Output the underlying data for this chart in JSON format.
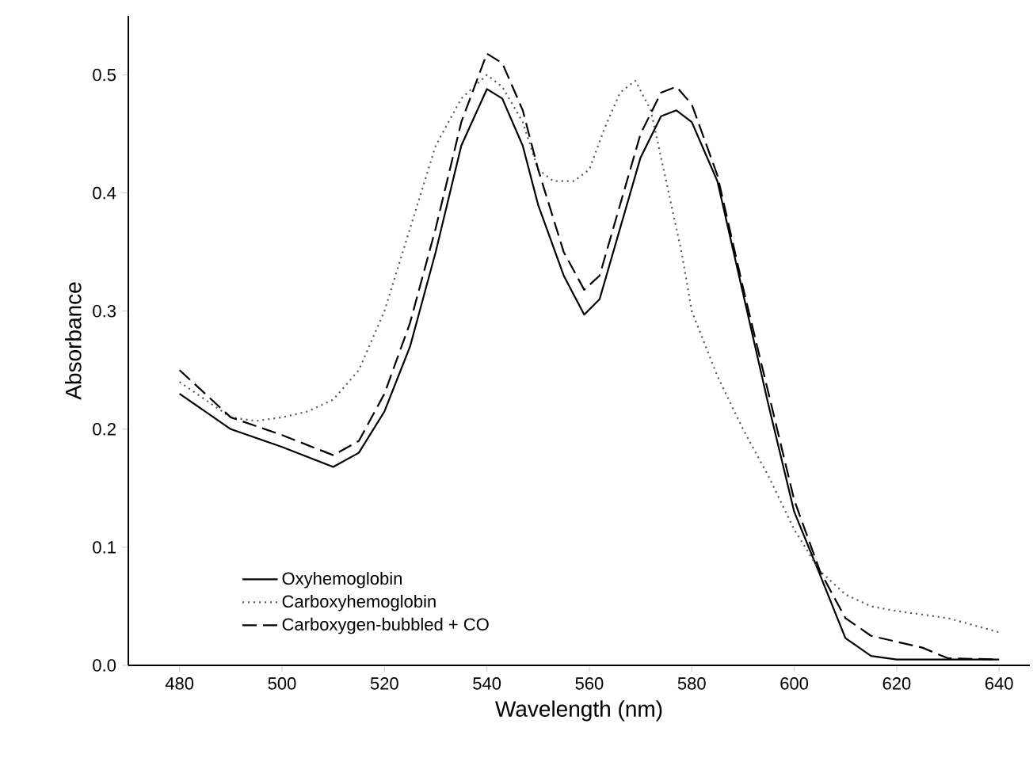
{
  "chart_data": {
    "type": "line",
    "xlabel": "Wavelength (nm)",
    "ylabel": "Absorbance",
    "xlim": [
      470,
      646
    ],
    "xticks": [
      480,
      500,
      520,
      540,
      560,
      580,
      600,
      620,
      640
    ],
    "ylim": [
      0,
      0.55
    ],
    "yticks": [
      {
        "value": 0,
        "label": "0.0"
      },
      0.1,
      0.2,
      0.3,
      0.4,
      0.5
    ],
    "legend": "bottom left",
    "grid": false,
    "marker": "none",
    "series": [
      {
        "name": "Oxyhemoglobin",
        "color": "#000000",
        "line_style": "solid",
        "x": [
          480,
          490,
          500,
          510,
          515,
          520,
          525,
          530,
          535,
          540,
          543,
          547,
          550,
          555,
          559,
          562,
          566,
          570,
          574,
          577,
          580,
          585,
          590,
          595,
          600,
          605,
          610,
          615,
          620,
          630,
          640
        ],
        "values": [
          0.23,
          0.2,
          0.185,
          0.168,
          0.18,
          0.215,
          0.27,
          0.35,
          0.44,
          0.488,
          0.48,
          0.44,
          0.39,
          0.33,
          0.297,
          0.31,
          0.37,
          0.43,
          0.465,
          0.47,
          0.46,
          0.41,
          0.315,
          0.22,
          0.13,
          0.077,
          0.023,
          0.008,
          0.005,
          0.005,
          0.005
        ]
      },
      {
        "name": "Carboxyhemoglobin",
        "color": "#555555",
        "line_style": "dotted",
        "x": [
          480,
          490,
          495,
          500,
          505,
          510,
          515,
          520,
          525,
          530,
          535,
          540,
          543,
          547,
          550,
          553,
          557,
          560,
          563,
          566,
          569,
          572,
          575,
          578,
          580,
          585,
          590,
          595,
          600,
          605,
          610,
          615,
          620,
          630,
          640
        ],
        "values": [
          0.24,
          0.21,
          0.207,
          0.21,
          0.215,
          0.225,
          0.25,
          0.3,
          0.37,
          0.44,
          0.48,
          0.5,
          0.49,
          0.46,
          0.42,
          0.41,
          0.41,
          0.42,
          0.455,
          0.485,
          0.495,
          0.47,
          0.41,
          0.35,
          0.3,
          0.245,
          0.2,
          0.16,
          0.115,
          0.08,
          0.06,
          0.05,
          0.046,
          0.04,
          0.028
        ]
      },
      {
        "name": "Carboxygen-bubbled + CO",
        "color": "#000000",
        "line_style": "dashed",
        "x": [
          480,
          490,
          500,
          510,
          515,
          520,
          525,
          530,
          535,
          540,
          543,
          547,
          550,
          555,
          559,
          562,
          566,
          570,
          574,
          577,
          580,
          585,
          590,
          595,
          600,
          605,
          610,
          615,
          620,
          625,
          630,
          640
        ],
        "values": [
          0.25,
          0.21,
          0.195,
          0.178,
          0.19,
          0.23,
          0.29,
          0.37,
          0.46,
          0.518,
          0.51,
          0.47,
          0.42,
          0.35,
          0.318,
          0.33,
          0.39,
          0.45,
          0.485,
          0.49,
          0.475,
          0.415,
          0.32,
          0.23,
          0.14,
          0.08,
          0.04,
          0.025,
          0.02,
          0.015,
          0.006,
          0.005
        ]
      }
    ]
  }
}
